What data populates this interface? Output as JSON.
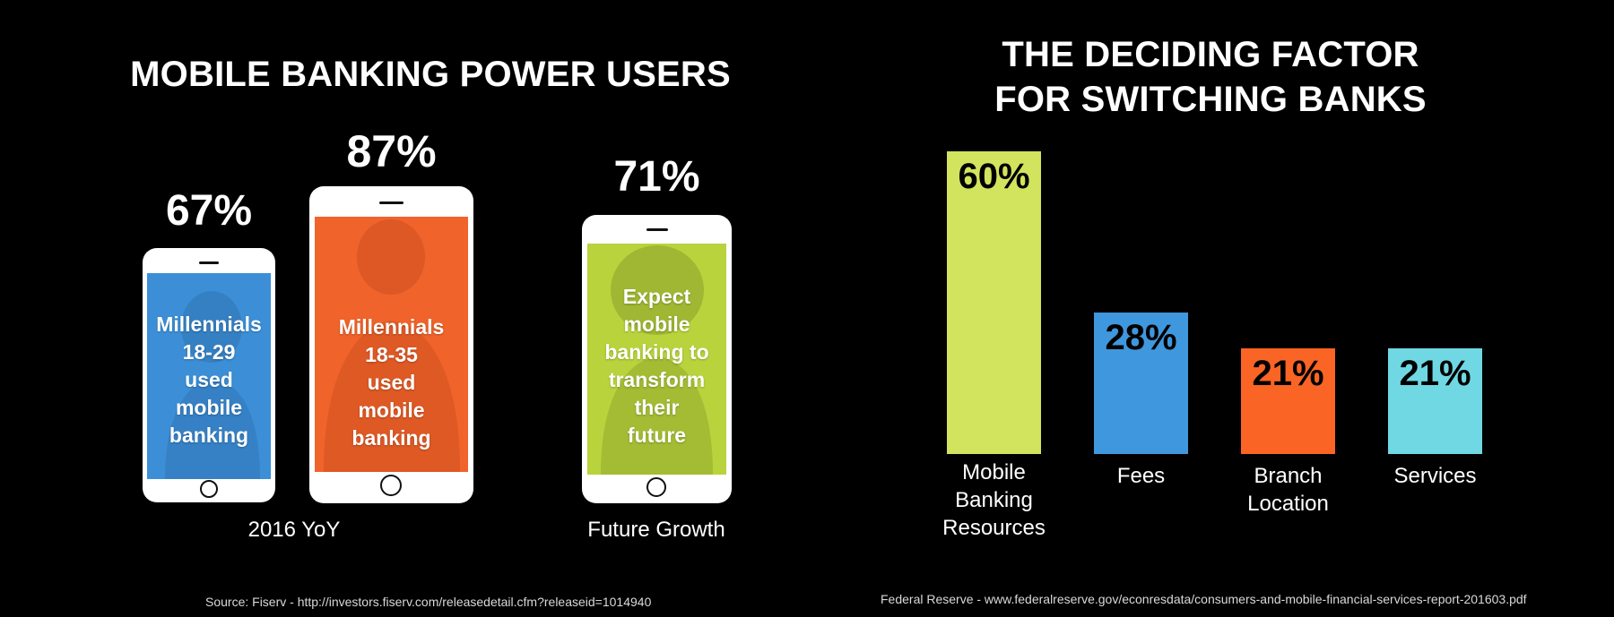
{
  "left_panel": {
    "title": "MOBILE BANKING POWER USERS",
    "phones": [
      {
        "value": "67%",
        "text": [
          "Millennials",
          "18-29",
          "used",
          "mobile",
          "banking"
        ],
        "screen_color": "#3c8fd6"
      },
      {
        "value": "87%",
        "text": [
          "Millennials",
          "18-35",
          "used",
          "mobile",
          "banking"
        ],
        "screen_color": "#f0632a"
      },
      {
        "value": "71%",
        "text": [
          "Expect",
          "mobile",
          "banking to",
          "transform",
          "their",
          "future"
        ],
        "screen_color": "#b9d33d"
      }
    ],
    "captions": {
      "yoy": "2016 YoY",
      "future": "Future Growth"
    },
    "source": "Source: Fiserv - http://investors.fiserv.com/releasedetail.cfm?releaseid=1014940"
  },
  "right_panel": {
    "title_line1": "THE DECIDING FACTOR",
    "title_line2": "FOR SWITCHING BANKS",
    "source": "Federal Reserve - www.federalreserve.gov/econresdata/consumers-and-mobile-financial-services-report-201603.pdf"
  },
  "chart_data": [
    {
      "type": "bar",
      "title": "MOBILE BANKING POWER USERS",
      "categories": [
        "Millennials 18-29 used mobile banking",
        "Millennials 18-35 used mobile banking",
        "Expect mobile banking to transform their future"
      ],
      "values": [
        67,
        87,
        71
      ],
      "groups": [
        "2016 YoY",
        "2016 YoY",
        "Future Growth"
      ]
    },
    {
      "type": "bar",
      "title": "THE DECIDING FACTOR FOR SWITCHING BANKS",
      "categories": [
        "Mobile Banking Resources",
        "Fees",
        "Branch Location",
        "Services"
      ],
      "values": [
        60,
        28,
        21,
        21
      ],
      "value_labels": [
        "60%",
        "28%",
        "21%",
        "21%"
      ],
      "label_lines": [
        [
          "Mobile",
          "Banking",
          "Resources"
        ],
        [
          "Fees"
        ],
        [
          "Branch",
          "Location"
        ],
        [
          "Services"
        ]
      ],
      "colors": [
        "#d2e35e",
        "#3f97dd",
        "#fa6424",
        "#6fd8e3"
      ],
      "grid": false,
      "legend": "none"
    }
  ]
}
